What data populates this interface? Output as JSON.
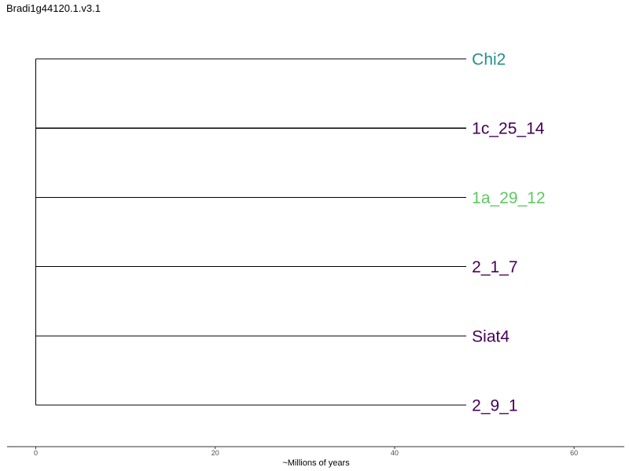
{
  "title": "Bradi1g44120.1.v3.1",
  "chart_data": {
    "type": "dendrogram",
    "xlabel": "~Millions of years",
    "xlim": [
      -3.2,
      65.6
    ],
    "ticks": [
      0,
      20,
      40,
      60
    ],
    "root_x": 0,
    "leaf_x": 48,
    "leaves": [
      {
        "label": "Chi2",
        "color": "#21918c"
      },
      {
        "label": "1c_25_14",
        "color": "#440154"
      },
      {
        "label": "1a_29_12",
        "color": "#5ec962"
      },
      {
        "label": "2_1_7",
        "color": "#440154"
      },
      {
        "label": "Siat4",
        "color": "#440154"
      },
      {
        "label": "2_9_1",
        "color": "#440154"
      }
    ]
  }
}
